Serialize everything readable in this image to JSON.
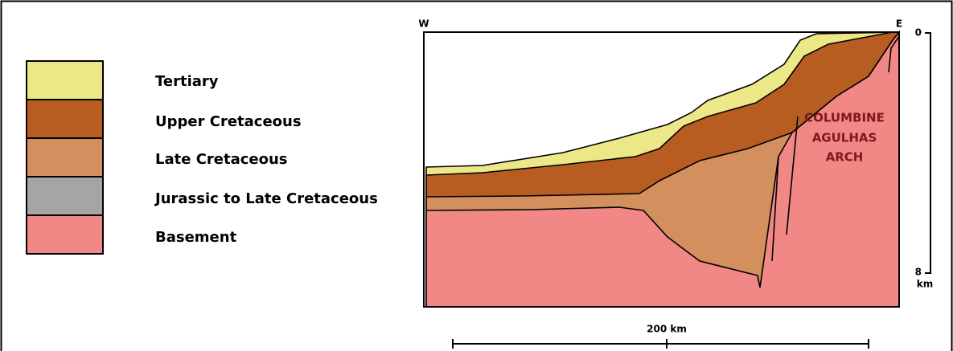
{
  "legend": [
    "Tertiary",
    "Upper Cretaceous",
    "Late Cretaceous",
    "Jurassic to Late Cretaceous",
    "Basement"
  ],
  "section": {
    "west": "W",
    "east": "E",
    "arch": [
      "COLUMBINE",
      "AGULHAS",
      "ARCH"
    ]
  },
  "depth_scale": {
    "top": "0",
    "bottom": "8",
    "unit": "km"
  },
  "length_scale": "200 km"
}
